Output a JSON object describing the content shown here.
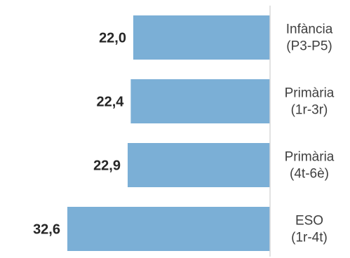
{
  "chart_data": {
    "type": "bar",
    "orientation": "horizontal",
    "categories": [
      [
        "Infància",
        "(P3-P5)"
      ],
      [
        "Primària",
        "(1r-3r)"
      ],
      [
        "Primària",
        "(4t-6è)"
      ],
      [
        "ESO",
        "(1r-4t)"
      ]
    ],
    "values": [
      22.0,
      22.4,
      22.9,
      32.6
    ],
    "value_labels": [
      "22,0",
      "22,4",
      "22,9",
      "32,6"
    ],
    "bar_color": "#7bafd6",
    "bar_direction": "right-to-left",
    "xlim": [
      0,
      32.6
    ],
    "grid": false,
    "legend": "none"
  }
}
